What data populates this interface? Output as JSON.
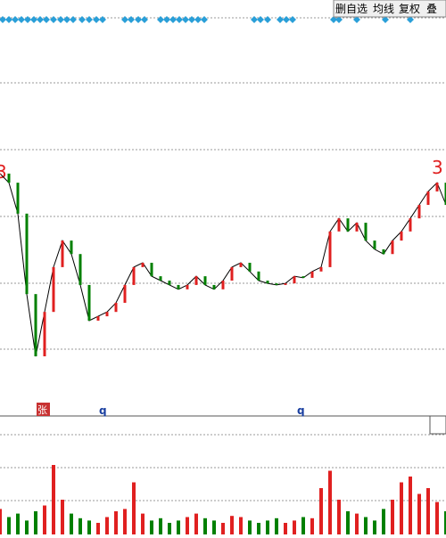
{
  "toolbar": {
    "buttons": [
      "删自选",
      "均线",
      "复权",
      "叠"
    ]
  },
  "markers": {
    "peak_left": "3",
    "peak_right": "3",
    "event_zhang": "张",
    "event_q": [
      "q",
      "q"
    ]
  },
  "chart_data": [
    {
      "type": "line",
      "color": "#000000",
      "up_color": "#e02020",
      "down_color": "#008000",
      "ylim": [
        0,
        100
      ],
      "values": [
        60.7,
        58.4,
        50.6,
        30.3,
        14.6,
        25.8,
        37.1,
        43.8,
        40.4,
        32.6,
        23.6,
        24.7,
        25.8,
        28.1,
        32.6,
        37.1,
        38.2,
        34.8,
        33.7,
        32.6,
        31.5,
        32.6,
        34.8,
        32.6,
        31.5,
        33.7,
        37.1,
        38.2,
        36.0,
        33.7,
        33.0,
        32.6,
        33.0,
        34.8,
        34.4,
        36.0,
        37.1,
        46.1,
        49.4,
        46.1,
        48.3,
        43.8,
        41.6,
        40.4,
        43.8,
        46.1,
        49.4,
        52.8,
        56.2,
        58.4,
        52.8
      ]
    },
    {
      "type": "bar",
      "up_color": "#e02020",
      "down_color": "#008000",
      "ylim": [
        0,
        100
      ],
      "values": [
        22,
        15,
        18,
        12,
        20,
        25,
        60,
        30,
        18,
        14,
        12,
        10,
        15,
        20,
        22,
        45,
        18,
        12,
        14,
        10,
        12,
        15,
        18,
        14,
        12,
        10,
        16,
        15,
        12,
        10,
        12,
        14,
        10,
        12,
        15,
        14,
        40,
        55,
        30,
        20,
        18,
        15,
        12,
        22,
        30,
        45,
        50,
        35,
        40,
        28,
        20
      ]
    }
  ]
}
